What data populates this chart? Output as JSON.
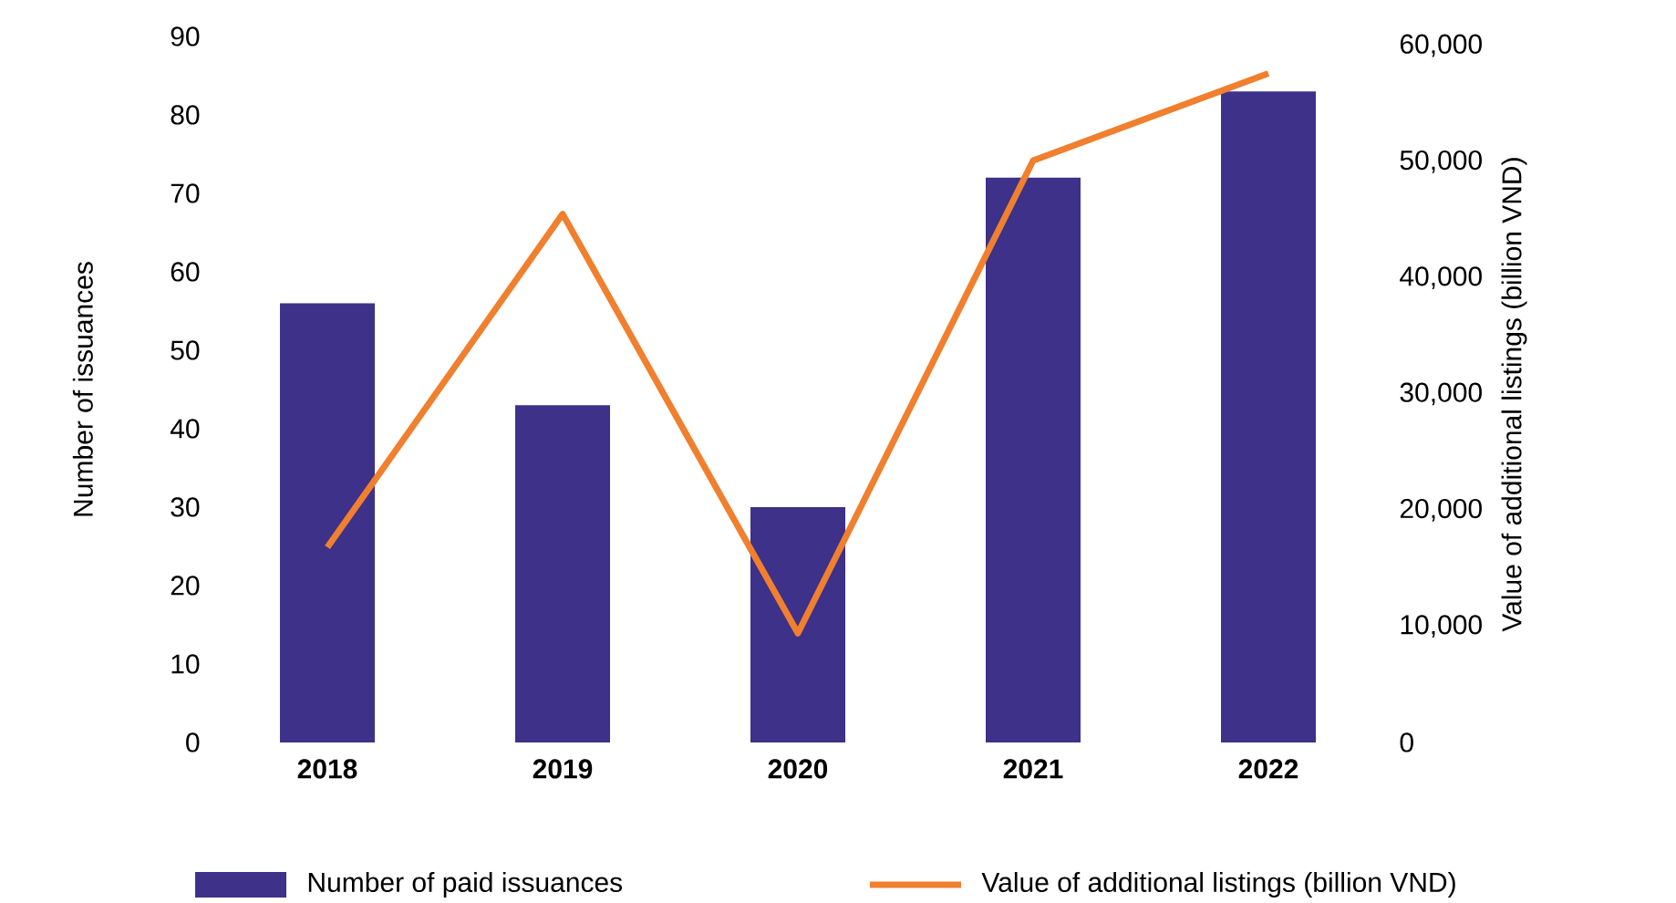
{
  "chart_data": {
    "type": "bar",
    "categories": [
      "2018",
      "2019",
      "2020",
      "2021",
      "2022"
    ],
    "series": [
      {
        "name": "Number of paid issuances",
        "color": "#3d3189",
        "values": [
          56,
          43,
          30,
          72,
          83
        ]
      },
      {
        "name": "Value of additional listings (billion VND)",
        "type": "line",
        "axis": "y2",
        "color": "#f07f2e",
        "values": [
          16800,
          45500,
          9400,
          50100,
          57600
        ]
      }
    ],
    "ylabel": "Number of issuances",
    "y2label": "Value of additional listings (billion VND)",
    "ylim": [
      0,
      90
    ],
    "yticks": [
      0,
      10,
      20,
      30,
      40,
      50,
      60,
      70,
      80,
      90
    ],
    "y2lim": [
      0,
      60000
    ],
    "y2ticks": [
      0,
      {
        "value": 10000,
        "label": "10,000"
      },
      {
        "value": 20000,
        "label": "20,000"
      },
      {
        "value": 30000,
        "label": "30,000"
      },
      {
        "value": 40000,
        "label": "40,000"
      },
      {
        "value": 50000,
        "label": "50,000"
      },
      {
        "value": 60000,
        "label": "60,000"
      }
    ],
    "legend": "bottom",
    "grid": false,
    "marker": "none",
    "line_style": "solid"
  }
}
